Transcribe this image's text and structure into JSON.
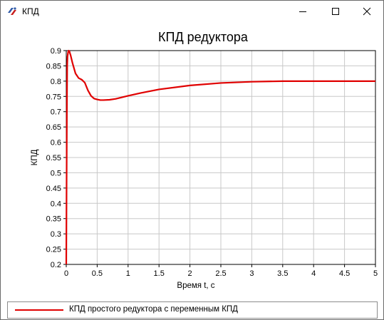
{
  "window": {
    "title": "КПД"
  },
  "legend": {
    "entry": "КПД простого редуктора с переменным КПД"
  },
  "colors": {
    "series": "#e00000",
    "grid": "#c8c8c8"
  },
  "chart_data": {
    "type": "line",
    "title": "КПД редуктора",
    "xlabel": "Время t, с",
    "ylabel": "КПД",
    "xlim": [
      0,
      5
    ],
    "ylim": [
      0.2,
      0.9
    ],
    "x_ticks": [
      "0",
      "0.5",
      "1",
      "1.5",
      "2",
      "2.5",
      "3",
      "3.5",
      "4",
      "4.5",
      "5"
    ],
    "y_ticks": [
      "0.2",
      "0.25",
      "0.3",
      "0.35",
      "0.4",
      "0.45",
      "0.5",
      "0.55",
      "0.6",
      "0.65",
      "0.7",
      "0.75",
      "0.8",
      "0.85",
      "0.9"
    ],
    "grid": true,
    "series": [
      {
        "name": "КПД простого редуктора с переменным КПД",
        "x": [
          0,
          0.005,
          0.01,
          0.015,
          0.02,
          0.03,
          0.04,
          0.05,
          0.07,
          0.1,
          0.15,
          0.2,
          0.25,
          0.3,
          0.35,
          0.4,
          0.45,
          0.5,
          0.55,
          0.6,
          0.7,
          0.8,
          0.9,
          1.0,
          1.2,
          1.5,
          2.0,
          2.5,
          3.0,
          3.5,
          4.0,
          4.5,
          5.0
        ],
        "y": [
          0.2,
          0.45,
          0.7,
          0.85,
          0.88,
          0.895,
          0.9,
          0.898,
          0.885,
          0.86,
          0.825,
          0.81,
          0.805,
          0.795,
          0.77,
          0.752,
          0.743,
          0.74,
          0.738,
          0.738,
          0.739,
          0.742,
          0.747,
          0.752,
          0.761,
          0.773,
          0.786,
          0.794,
          0.798,
          0.8,
          0.8,
          0.8,
          0.8
        ]
      }
    ]
  }
}
